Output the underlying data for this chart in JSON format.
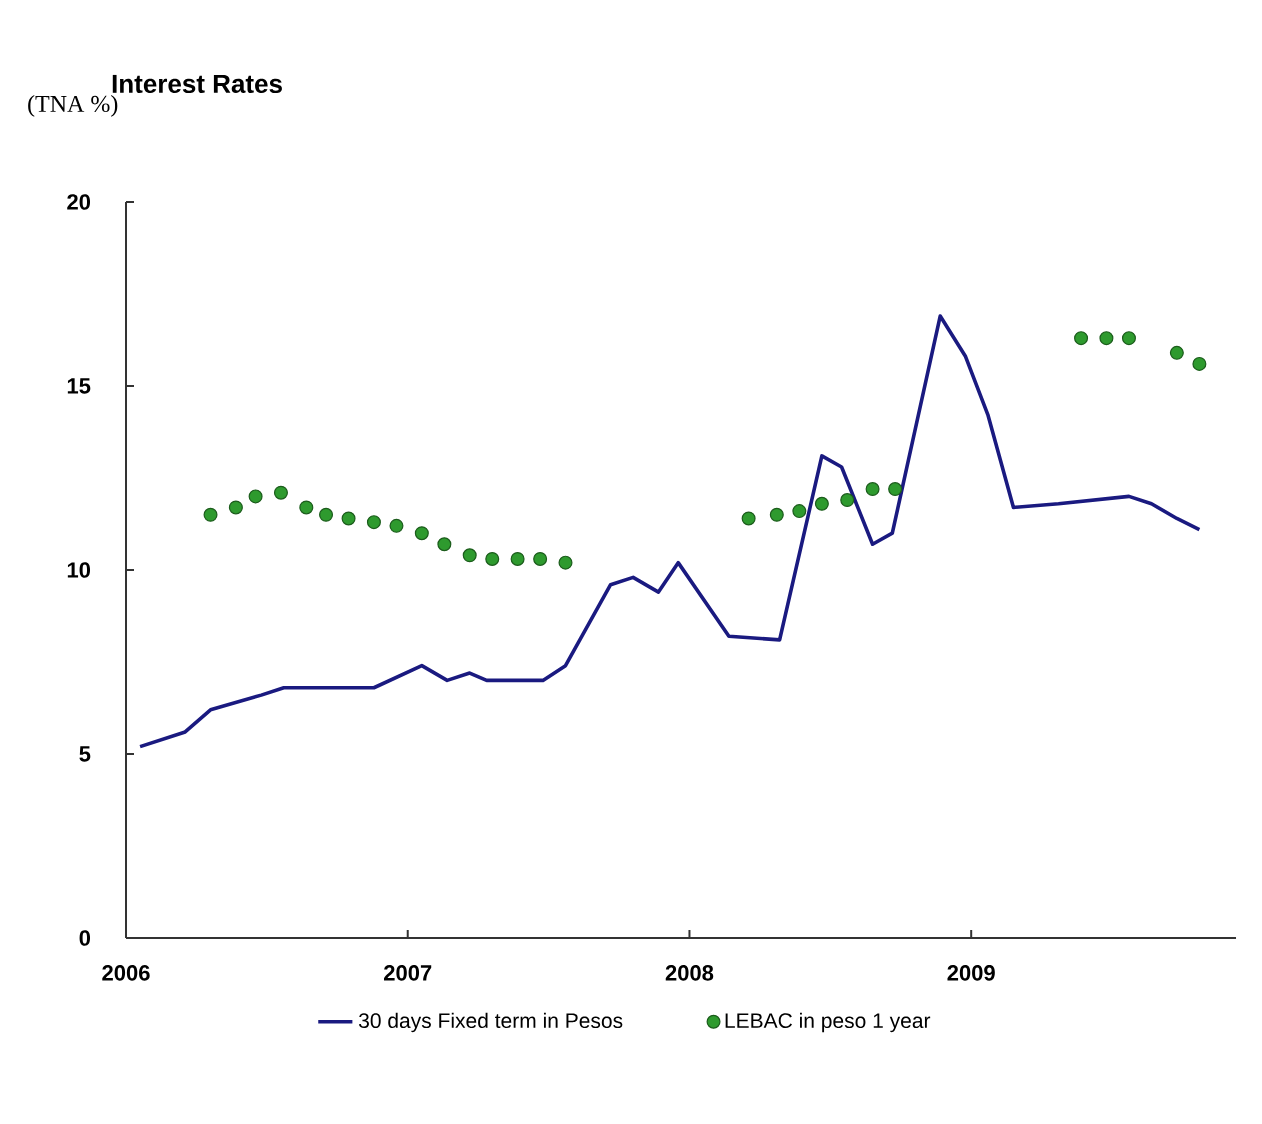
{
  "chart_data": {
    "type": "line",
    "title": "Interest Rates",
    "ylabel": "(TNA %)",
    "xlim": [
      2006,
      2009.94
    ],
    "ylim": [
      0,
      20
    ],
    "xticks": [
      2006,
      2007,
      2008,
      2009
    ],
    "yticks": [
      0,
      5,
      10,
      15,
      20
    ],
    "legend": "bottom",
    "series": [
      {
        "name": "30 days Fixed term in Pesos",
        "marker": "none",
        "color": "#1a1a80",
        "x": [
          2006.05,
          2006.21,
          2006.3,
          2006.48,
          2006.56,
          2006.88,
          2007.05,
          2007.14,
          2007.22,
          2007.28,
          2007.48,
          2007.56,
          2007.72,
          2007.8,
          2007.89,
          2007.96,
          2008.14,
          2008.32,
          2008.47,
          2008.54,
          2008.65,
          2008.72,
          2008.89,
          2008.98,
          2009.06,
          2009.15,
          2009.31,
          2009.56,
          2009.64,
          2009.73,
          2009.81
        ],
        "values": [
          5.2,
          5.6,
          6.2,
          6.6,
          6.8,
          6.8,
          7.4,
          7.0,
          7.2,
          7.0,
          7.0,
          7.4,
          9.6,
          9.8,
          9.4,
          10.2,
          8.2,
          8.1,
          13.1,
          12.8,
          10.7,
          11.0,
          16.9,
          15.8,
          14.2,
          11.7,
          11.8,
          12.0,
          11.8,
          11.4,
          11.1
        ]
      },
      {
        "name": "LEBAC in peso  1 year",
        "type": "scatter",
        "marker": "circle",
        "color": "#2e9a2e",
        "x": [
          2006.3,
          2006.39,
          2006.46,
          2006.55,
          2006.64,
          2006.71,
          2006.79,
          2006.88,
          2006.96,
          2007.05,
          2007.13,
          2007.22,
          2007.3,
          2007.39,
          2007.47,
          2007.56,
          2008.21,
          2008.31,
          2008.39,
          2008.47,
          2008.56,
          2008.65,
          2008.73,
          2009.39,
          2009.48,
          2009.56,
          2009.73,
          2009.81
        ],
        "values": [
          11.5,
          11.7,
          12.0,
          12.1,
          11.7,
          11.5,
          11.4,
          11.3,
          11.2,
          11.0,
          10.7,
          10.4,
          10.3,
          10.3,
          10.3,
          10.2,
          11.4,
          11.5,
          11.6,
          11.8,
          11.9,
          12.2,
          12.2,
          16.3,
          16.3,
          16.3,
          15.9,
          15.6
        ]
      }
    ]
  }
}
